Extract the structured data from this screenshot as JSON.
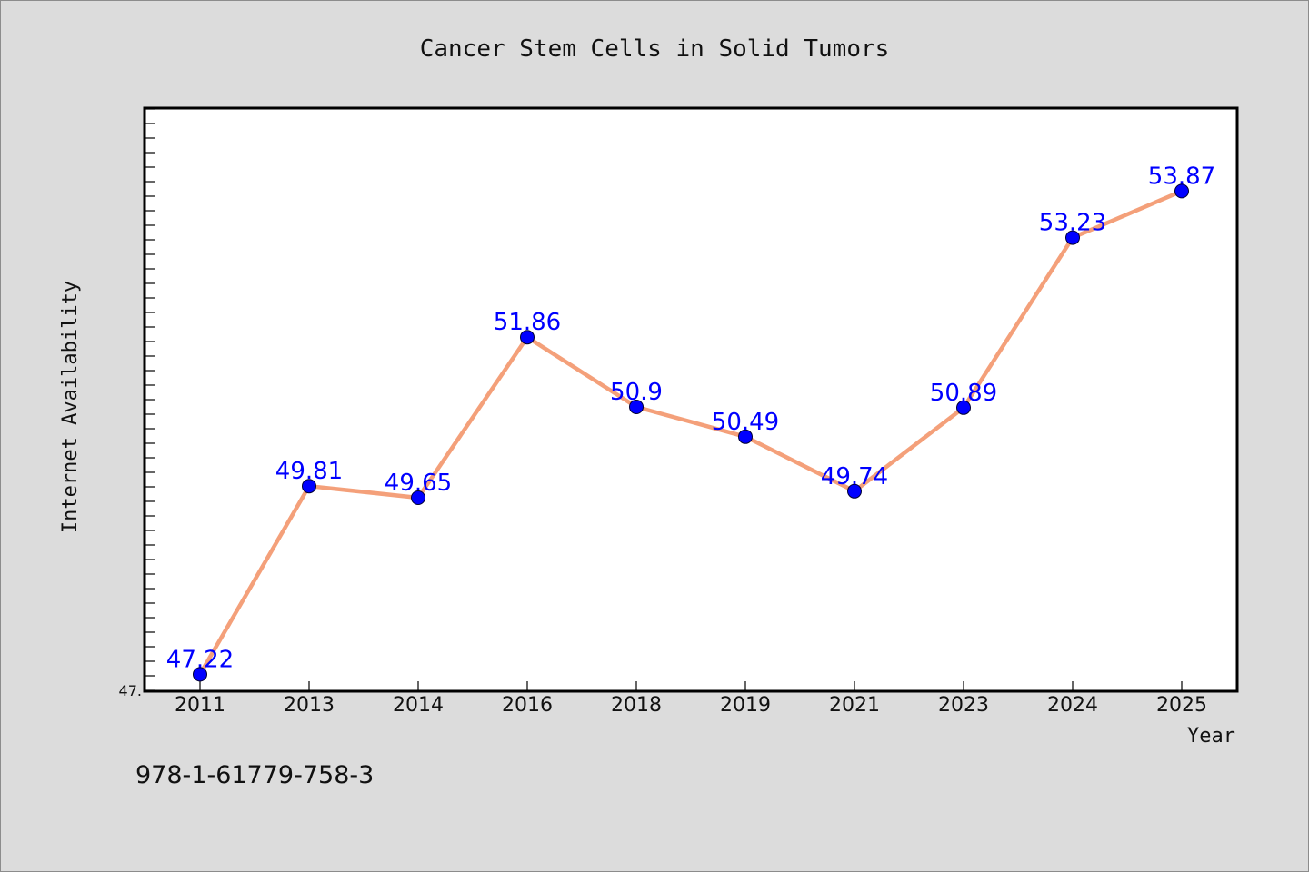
{
  "chart_data": {
    "type": "line",
    "title": "Cancer Stem Cells in Solid Tumors",
    "xlabel": "Year",
    "ylabel": "Internet Availability",
    "categories": [
      "2011",
      "2013",
      "2014",
      "2016",
      "2018",
      "2019",
      "2021",
      "2023",
      "2024",
      "2025"
    ],
    "series": [
      {
        "values": [
          47.22,
          49.81,
          49.65,
          51.86,
          50.9,
          50.49,
          49.74,
          50.89,
          53.23,
          53.87
        ],
        "data_labels": [
          "47.22",
          "49.81",
          "49.65",
          "51.86",
          "50.9",
          "50.49",
          "49.74",
          "50.89",
          "53.23",
          "53.87"
        ]
      }
    ],
    "ylim": [
      47.0,
      55.0
    ],
    "ytick_labels": [
      {
        "value": 47.0,
        "label": "47."
      }
    ],
    "grid": false,
    "legend": "none",
    "colors": {
      "line": "#f4a07a",
      "marker": "#0000ff",
      "data_label": "#0000ff",
      "background": "#dcdcdc",
      "plot_area": "#ffffff"
    }
  },
  "footer": {
    "isbn": "978-1-61779-758-3"
  }
}
